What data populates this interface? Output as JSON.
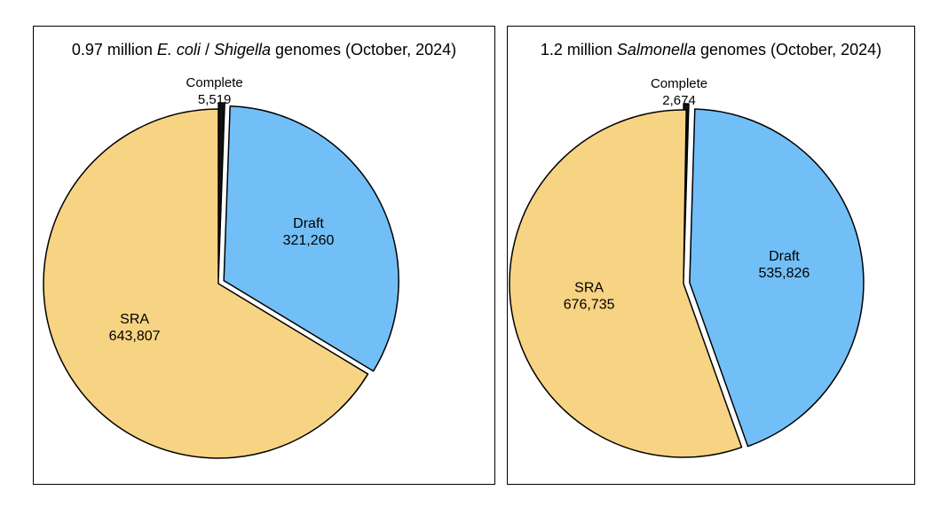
{
  "chart_data": [
    {
      "type": "pie",
      "title": {
        "prefix": "0.97 million ",
        "italic_1": "E. coli",
        "middle": " / ",
        "italic_2": "Shigella",
        "suffix": " genomes (October, 2024)"
      },
      "slices": [
        {
          "name": "Complete",
          "value": 5519,
          "value_label": "5,519",
          "color": "#111111",
          "exploded": true
        },
        {
          "name": "Draft",
          "value": 321260,
          "value_label": "321,260",
          "color": "#72bff7",
          "exploded": true
        },
        {
          "name": "SRA",
          "value": 643807,
          "value_label": "643,807",
          "color": "#f7d483",
          "exploded": false
        }
      ]
    },
    {
      "type": "pie",
      "title": {
        "prefix": "1.2 million ",
        "italic_1": "Salmonella",
        "middle": "",
        "italic_2": "",
        "suffix": " genomes (October, 2024)"
      },
      "slices": [
        {
          "name": "Complete",
          "value": 2674,
          "value_label": "2,674",
          "color": "#111111",
          "exploded": true
        },
        {
          "name": "Draft",
          "value": 535826,
          "value_label": "535,826",
          "color": "#72bff7",
          "exploded": true
        },
        {
          "name": "SRA",
          "value": 676735,
          "value_label": "676,735",
          "color": "#f7d483",
          "exploded": false
        }
      ]
    }
  ]
}
